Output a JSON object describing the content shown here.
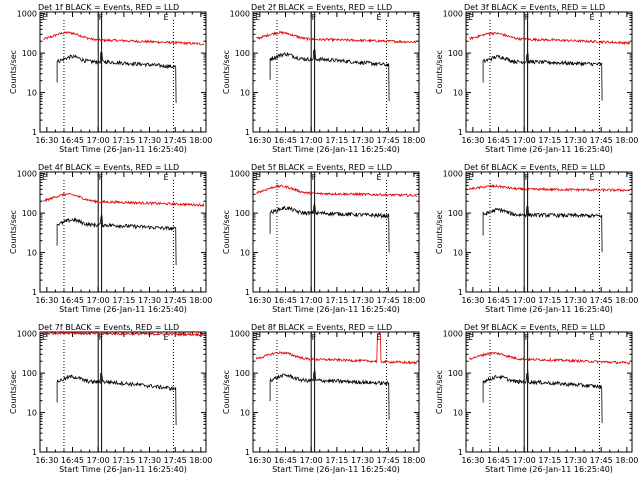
{
  "chart_data": {
    "type": "line",
    "panel_titles": [
      "Det 1f BLACK = Events, RED = LLD",
      "Det 2f BLACK = Events, RED = LLD",
      "Det 3f BLACK = Events, RED = LLD",
      "Det 4f BLACK = Events, RED = LLD",
      "Det 5f BLACK = Events, RED = LLD",
      "Det 6f BLACK = Events, RED = LLD",
      "Det 7f BLACK = Events, RED = LLD",
      "Det 8f BLACK = Events, RED = LLD",
      "Det 9f BLACK = Events, RED = LLD"
    ],
    "xlabel": "Start Time (26-Jan-11 16:25:40)",
    "ylabel": "Counts/sec",
    "x_tick_labels": [
      "16:30",
      "16:45",
      "17:00",
      "17:15",
      "17:30",
      "17:45",
      "18:00"
    ],
    "x_tick_minutes": [
      30,
      45,
      60,
      75,
      90,
      105,
      120
    ],
    "xlim_minutes": [
      26,
      123
    ],
    "y_tick_labels": [
      "1",
      "10",
      "100",
      "1000"
    ],
    "ylim": [
      1,
      1100
    ],
    "y_scale": "log",
    "marker_labels": [
      "E",
      "F",
      "E"
    ],
    "marker_lines_minutes": [
      40,
      60,
      62,
      104
    ],
    "colors": {
      "events": "#000000",
      "lld": "#e00000"
    },
    "panels": [
      {
        "events_level": 60,
        "events_end": 45,
        "lld_level": 210,
        "lld_peak": 330,
        "lld_end": 170,
        "lld_spike": 0
      },
      {
        "events_level": 70,
        "events_end": 50,
        "lld_level": 220,
        "lld_peak": 330,
        "lld_end": 190,
        "lld_spike": 0
      },
      {
        "events_level": 60,
        "events_end": 52,
        "lld_level": 220,
        "lld_peak": 320,
        "lld_end": 180,
        "lld_spike": 0
      },
      {
        "events_level": 50,
        "events_end": 40,
        "lld_level": 190,
        "lld_peak": 300,
        "lld_end": 160,
        "lld_spike": 0
      },
      {
        "events_level": 100,
        "events_end": 85,
        "lld_level": 310,
        "lld_peak": 480,
        "lld_end": 280,
        "lld_spike": 0
      },
      {
        "events_level": 90,
        "events_end": 85,
        "lld_level": 400,
        "lld_peak": 480,
        "lld_end": 380,
        "lld_spike": 0
      },
      {
        "events_level": 60,
        "events_end": 40,
        "lld_level": 1000,
        "lld_peak": 1050,
        "lld_end": 950,
        "lld_spike": 0
      },
      {
        "events_level": 65,
        "events_end": 55,
        "lld_level": 220,
        "lld_peak": 330,
        "lld_end": 180,
        "lld_spike": 1000
      },
      {
        "events_level": 60,
        "events_end": 45,
        "lld_level": 220,
        "lld_peak": 320,
        "lld_end": 180,
        "lld_spike": 0
      }
    ]
  }
}
